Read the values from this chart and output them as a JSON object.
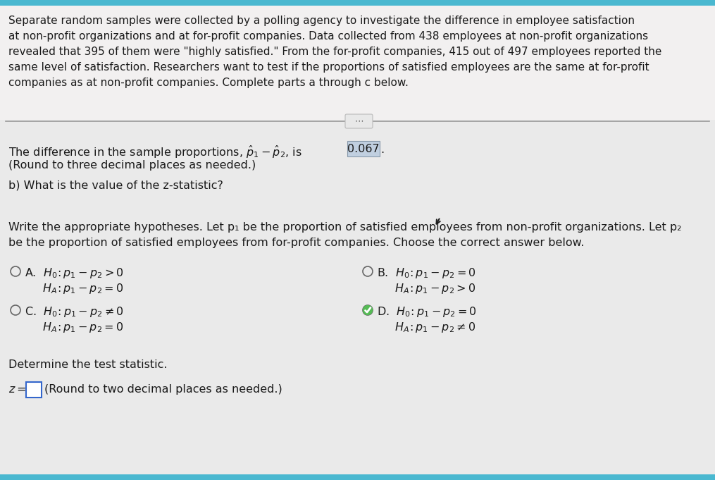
{
  "bg_top_color": "#4ab8d0",
  "bg_intro_color": "#f0eeee",
  "bg_content_color": "#ebebeb",
  "text_color": "#1a1a1a",
  "highlight_box_color": "#c0cfe0",
  "intro_text_lines": [
    "Separate random samples were collected by a polling agency to investigate the difference in employee satisfaction",
    "at non-profit organizations and at for-profit companies. Data collected from 438 employees at non-profit organizations",
    "revealed that 395 of them were \"highly satisfied.\" From the for-profit companies, 415 out of 497 employees reported the",
    "same level of satisfaction. Researchers want to test if the proportions of satisfied employees are the same at for-profit",
    "companies as at non-profit companies. Complete parts a through c below."
  ],
  "diff_value": "0.067",
  "round3_note": "(Round to three decimal places as needed.)",
  "part_b": "b) What is the value of the z-statistic?",
  "hyp_intro_line1": "Write the appropriate hypotheses. Let p₁ be the proportion of satisfied employees from non-profit organizations. Let p₂",
  "hyp_intro_line2": "be the proportion of satisfied employees from for-profit companies. Choose the correct answer below.",
  "det_stat": "Determine the test statistic.",
  "z_note": "(Round to two decimal places as needed.)"
}
